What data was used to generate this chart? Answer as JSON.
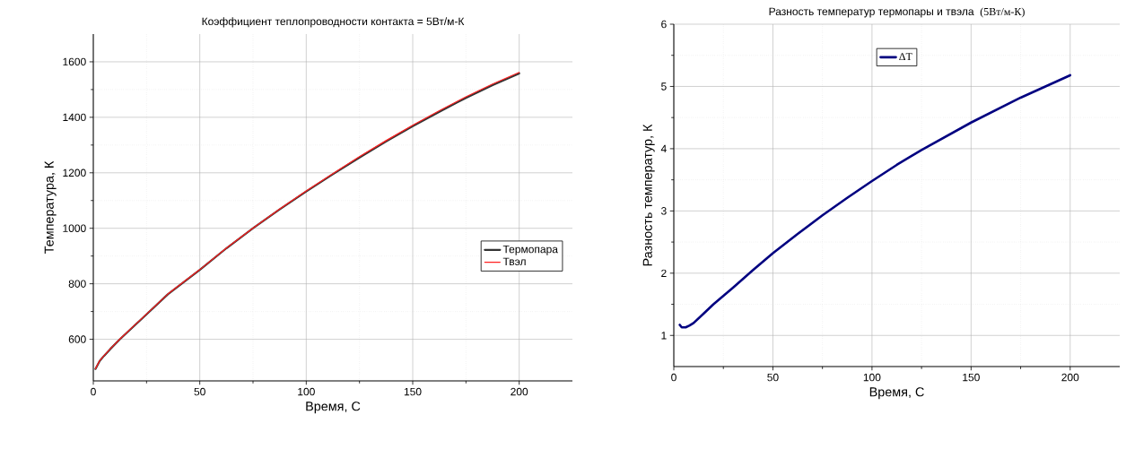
{
  "chart_data": [
    {
      "type": "line",
      "title": "Коэффициент теплопроводности контакта = 5Вт/м-К",
      "xlabel": "Время, С",
      "ylabel": "Температура, К",
      "xlim": [
        0,
        225
      ],
      "ylim": [
        450,
        1700
      ],
      "xticks": [
        0,
        50,
        100,
        150,
        200
      ],
      "yticks": [
        600,
        800,
        1000,
        1200,
        1400,
        1600
      ],
      "grid": true,
      "legend": "right",
      "x": [
        1,
        3,
        5,
        8,
        12.5,
        18,
        25,
        35,
        50,
        62.5,
        75,
        87.5,
        100,
        112.5,
        125,
        137.5,
        150,
        162.5,
        175,
        187.5,
        200
      ],
      "series": [
        {
          "name": "Термопара",
          "color": "#333333",
          "values": [
            493,
            522,
            540,
            565,
            600,
            640,
            690,
            762,
            850,
            928,
            1000,
            1068,
            1133,
            1195,
            1255,
            1313,
            1368,
            1420,
            1470,
            1516,
            1558
          ]
        },
        {
          "name": "Твэл",
          "color": "#ff2020",
          "values": [
            494,
            523,
            541,
            566,
            601,
            641,
            691,
            763,
            851,
            929,
            1001,
            1069,
            1135,
            1197,
            1258,
            1316,
            1371,
            1424,
            1474,
            1520,
            1562
          ]
        }
      ]
    },
    {
      "type": "line",
      "title": "Разность температур термопары и твэла",
      "subtitle": "(5Вт/м-К)",
      "xlabel": "Время, С",
      "ylabel": "Разность температур, К",
      "xlim": [
        0,
        225
      ],
      "ylim": [
        0.5,
        6
      ],
      "xticks": [
        0,
        50,
        100,
        150,
        200
      ],
      "yticks": [
        1,
        2,
        3,
        4,
        5,
        6
      ],
      "grid": true,
      "legend": "top",
      "x": [
        3,
        4,
        6,
        8,
        10,
        15,
        20,
        30,
        40,
        50,
        62.5,
        75,
        87.5,
        100,
        112.5,
        125,
        137.5,
        150,
        162.5,
        175,
        187.5,
        200
      ],
      "series": [
        {
          "name": "ΔT",
          "color": "#000080",
          "values": [
            1.17,
            1.13,
            1.13,
            1.16,
            1.2,
            1.35,
            1.5,
            1.77,
            2.05,
            2.32,
            2.63,
            2.93,
            3.21,
            3.48,
            3.74,
            3.98,
            4.2,
            4.42,
            4.62,
            4.82,
            5.0,
            5.18
          ]
        }
      ]
    }
  ]
}
